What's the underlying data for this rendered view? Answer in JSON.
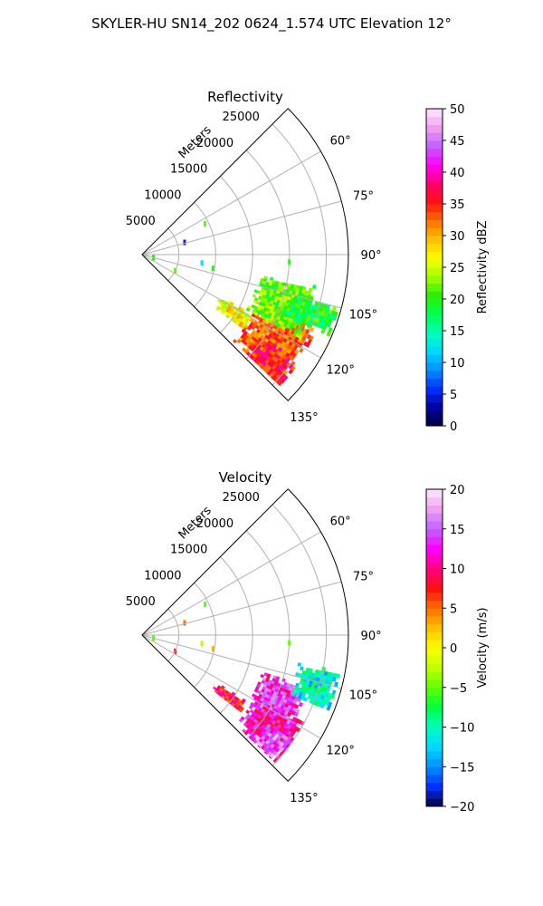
{
  "figure_title": "SKYLER-HU  SN14_202  0624_1.574 UTC Elevation 12°",
  "chart_data": [
    {
      "type": "heatmap",
      "title": "Reflectivity",
      "radial_axis_label": "Meters",
      "radial_ticks": [
        5000,
        10000,
        15000,
        20000,
        25000
      ],
      "radial_tick_labels": [
        "5000",
        "10000",
        "15000",
        "20000",
        "25000"
      ],
      "angle_ticks": [
        60,
        75,
        90,
        105,
        120,
        135
      ],
      "angle_tick_labels": [
        "60°",
        "75°",
        "90°",
        "105°",
        "120°",
        "135°"
      ],
      "theta_range_deg": [
        45,
        135
      ],
      "r_max": 28000,
      "grid": true,
      "colorbar": {
        "label": "Reflectivity dBZ",
        "range": [
          0,
          50
        ],
        "ticks": [
          0,
          5,
          10,
          15,
          20,
          25,
          30,
          35,
          40,
          45,
          50
        ],
        "tick_labels": [
          "0",
          "5",
          "10",
          "15",
          "20",
          "25",
          "30",
          "35",
          "40",
          "45",
          "50"
        ],
        "stops": [
          "#00003a",
          "#0000a0",
          "#0030ff",
          "#0090ff",
          "#00d8ff",
          "#00ffb8",
          "#00ff50",
          "#30ee00",
          "#a0ff00",
          "#ffff00",
          "#ffc000",
          "#ff7000",
          "#ff1010",
          "#ff0070",
          "#ff00ff",
          "#c060ff",
          "#f0a0f0",
          "#ffe8ff"
        ]
      },
      "echo_regions": [
        {
          "theta": [
            112,
            133
          ],
          "r": [
            17000,
            25500
          ],
          "value": 33
        },
        {
          "theta": [
            100,
            118
          ],
          "r": [
            16000,
            24000
          ],
          "value": 22
        },
        {
          "theta": [
            118,
            126
          ],
          "r": [
            12000,
            17000
          ],
          "value": 27
        },
        {
          "theta": [
            104,
            113
          ],
          "r": [
            21000,
            27500
          ],
          "value": 19
        },
        {
          "theta": [
            124,
            133
          ],
          "r": [
            20000,
            25500
          ],
          "value": 36
        }
      ],
      "small_echoes": [
        {
          "theta": 64,
          "r": 9500,
          "value": 22
        },
        {
          "theta": 74,
          "r": 6000,
          "value": 5
        },
        {
          "theta": 93,
          "r": 20000,
          "value": 20
        },
        {
          "theta": 98,
          "r": 8200,
          "value": 12
        },
        {
          "theta": 101,
          "r": 9800,
          "value": 20
        },
        {
          "theta": 105,
          "r": 1600,
          "value": 20
        },
        {
          "theta": 116,
          "r": 5000,
          "value": 22
        }
      ]
    },
    {
      "type": "heatmap",
      "title": "Velocity",
      "radial_axis_label": "Meters",
      "radial_ticks": [
        5000,
        10000,
        15000,
        20000,
        25000
      ],
      "radial_tick_labels": [
        "5000",
        "10000",
        "15000",
        "20000",
        "25000"
      ],
      "angle_ticks": [
        60,
        75,
        90,
        105,
        120,
        135
      ],
      "angle_tick_labels": [
        "60°",
        "75°",
        "90°",
        "105°",
        "120°",
        "135°"
      ],
      "theta_range_deg": [
        45,
        135
      ],
      "r_max": 28000,
      "grid": true,
      "colorbar": {
        "label": "Velocity (m/s)",
        "range": [
          -20,
          20
        ],
        "ticks": [
          -20,
          -15,
          -10,
          -5,
          0,
          5,
          10,
          15,
          20
        ],
        "tick_labels": [
          "−20",
          "−15",
          "−10",
          "−5",
          "0",
          "5",
          "10",
          "15",
          "20"
        ],
        "stops": [
          "#00003a",
          "#0030ff",
          "#0090ff",
          "#00d8ff",
          "#00ffc0",
          "#00ff40",
          "#60ff00",
          "#c0ff00",
          "#ffff00",
          "#ffc000",
          "#ff7000",
          "#ff1010",
          "#ff0080",
          "#ff00ff",
          "#c060ff",
          "#f0a0f0",
          "#ffe8ff"
        ]
      },
      "echo_regions": [
        {
          "theta": [
            117,
            133
          ],
          "r": [
            17500,
            25000
          ],
          "value": 11
        },
        {
          "theta": [
            107,
            122
          ],
          "r": [
            17000,
            23500
          ],
          "value": 13
        },
        {
          "theta": [
            100,
            111
          ],
          "r": [
            21500,
            27000
          ],
          "value": -11
        },
        {
          "theta": [
            125,
            133
          ],
          "r": [
            20500,
            24500
          ],
          "value": 15
        },
        {
          "theta": [
            122,
            128
          ],
          "r": [
            12000,
            17000
          ],
          "value": 8
        }
      ],
      "small_echoes": [
        {
          "theta": 64,
          "r": 9500,
          "value": -5
        },
        {
          "theta": 74,
          "r": 6000,
          "value": 5
        },
        {
          "theta": 93,
          "r": 20000,
          "value": -5
        },
        {
          "theta": 98,
          "r": 8200,
          "value": -3
        },
        {
          "theta": 101,
          "r": 9800,
          "value": 3
        },
        {
          "theta": 105,
          "r": 1600,
          "value": -5
        },
        {
          "theta": 116,
          "r": 5000,
          "value": 8
        }
      ]
    }
  ]
}
